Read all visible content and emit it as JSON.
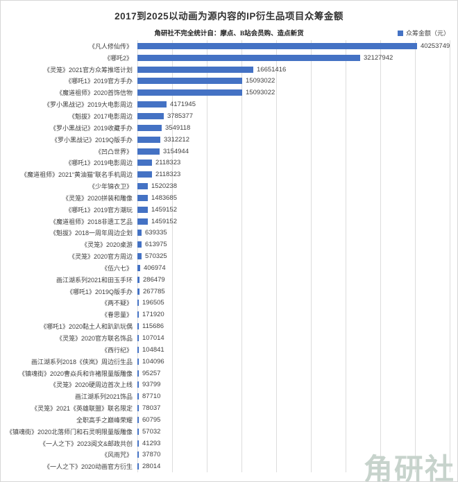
{
  "header": {
    "title": "2017到2025以动画为源内容的IP衍生品项目众筹金额",
    "subtitle": "角研社不完全统计自：摩点、B站会员购、造点新货",
    "legend": {
      "label": "众筹金额（元）",
      "color": "#4472c4"
    }
  },
  "watermark": "角研社",
  "chart_data": {
    "type": "bar",
    "orientation": "horizontal",
    "title": "2017到2025以动画为源内容的IP衍生品项目众筹金额",
    "subtitle": "角研社不完全统计自：摩点、B站会员购、造点新货",
    "legend_entries": [
      "众筹金额（元）"
    ],
    "legend_position": "top-right",
    "bar_color": "#4472c4",
    "grid": true,
    "xlim": [
      0,
      45000000
    ],
    "gridline_interval": 5000000,
    "categories": [
      "《凡人修仙传》",
      "《哪吒2》",
      "《灵笼》2021官方众筹推塔计划",
      "《哪吒1》2019官方手办",
      "《魔道祖师》2020首饰信物",
      "《罗小黑战记》2019大电影周边",
      "《魁拔》2017电影周边",
      "《罗小黑战记》2019收藏手办",
      "《罗小黑战记》2019Q版手办",
      "《凹凸世界》",
      "《哪吒1》2019电影周边",
      "《魔道祖师》2021“黄油猫”联名手机周边",
      "《少年锦衣卫》",
      "《灵笼》2020拼装和雕像",
      "《哪吒1》2019官方潮玩",
      "《魔道祖师》2018非遗工艺品",
      "《魁拔》2018一周年周边企划",
      "《灵笼》2020桌游",
      "《灵笼》2020官方周边",
      "《伍六七》",
      "画江湖系列2021和田玉手环",
      "《哪吒1》2019Q版手办",
      "《两不疑》",
      "《眷思量》",
      "《哪吒1》2020黏土人和趴趴玩偶",
      "《灵笼》2020官方联名饰品",
      "《西行纪》",
      "画江湖系列2018《侠岚》周边衍生品",
      "《镇魂街》2020曹焱兵和许褚限量版雕像",
      "《灵笼》2020硬周边首次上线",
      "画江湖系列2021饰品",
      "《灵笼》2021《英雄联盟》联名限定",
      "全职高手之巅峰荣耀",
      "《镇魂街》2020北落师门和石灵明限量版雕像",
      "《一人之下》2023阅文&邮政共创",
      "《风雨咒》",
      "《一人之下》2020动画官方衍生"
    ],
    "values": [
      40253749,
      32127942,
      16651416,
      15093022,
      15093022,
      4171945,
      3785377,
      3549118,
      3312212,
      3154944,
      2118323,
      2118323,
      1520238,
      1483685,
      1459152,
      1459152,
      639335,
      613975,
      570325,
      406974,
      286479,
      267785,
      196505,
      171920,
      115686,
      107014,
      104841,
      104096,
      95257,
      93799,
      87710,
      78037,
      60795,
      57032,
      41293,
      37870,
      28014
    ]
  }
}
